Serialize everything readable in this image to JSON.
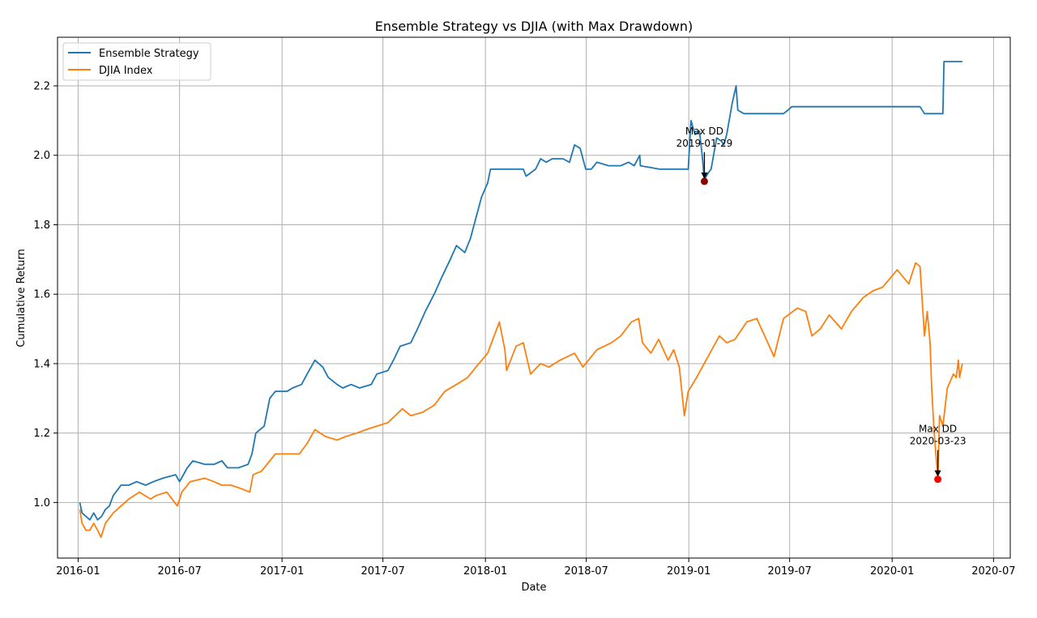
{
  "chart_data": {
    "type": "line",
    "title": "Ensemble Strategy vs DJIA (with Max Drawdown)",
    "xlabel": "Date",
    "ylabel": "Cumulative Return",
    "xlim": [
      "2015-11-25",
      "2020-07-31"
    ],
    "ylim": [
      0.84,
      2.34
    ],
    "x_ticks": [
      "2016-01",
      "2016-07",
      "2017-01",
      "2017-07",
      "2018-01",
      "2018-07",
      "2019-01",
      "2019-07",
      "2020-01",
      "2020-07"
    ],
    "y_ticks": [
      1.0,
      1.2,
      1.4,
      1.6,
      1.8,
      2.0,
      2.2
    ],
    "grid": true,
    "legend_position": "top-left",
    "series": [
      {
        "name": "Ensemble Strategy",
        "color": "#1f77b4",
        "points": [
          [
            "2016-01-04",
            1.0
          ],
          [
            "2016-01-08",
            0.97
          ],
          [
            "2016-01-15",
            0.96
          ],
          [
            "2016-01-22",
            0.95
          ],
          [
            "2016-01-29",
            0.97
          ],
          [
            "2016-02-05",
            0.95
          ],
          [
            "2016-02-12",
            0.96
          ],
          [
            "2016-02-19",
            0.98
          ],
          [
            "2016-02-26",
            0.99
          ],
          [
            "2016-03-04",
            1.02
          ],
          [
            "2016-03-18",
            1.05
          ],
          [
            "2016-04-01",
            1.05
          ],
          [
            "2016-04-15",
            1.06
          ],
          [
            "2016-05-01",
            1.05
          ],
          [
            "2016-05-15",
            1.06
          ],
          [
            "2016-06-01",
            1.07
          ],
          [
            "2016-06-24",
            1.08
          ],
          [
            "2016-07-01",
            1.06
          ],
          [
            "2016-07-15",
            1.1
          ],
          [
            "2016-07-25",
            1.12
          ],
          [
            "2016-08-15",
            1.11
          ],
          [
            "2016-09-01",
            1.11
          ],
          [
            "2016-09-15",
            1.12
          ],
          [
            "2016-09-25",
            1.1
          ],
          [
            "2016-10-15",
            1.1
          ],
          [
            "2016-11-01",
            1.11
          ],
          [
            "2016-11-08",
            1.14
          ],
          [
            "2016-11-15",
            1.2
          ],
          [
            "2016-11-30",
            1.22
          ],
          [
            "2016-12-10",
            1.3
          ],
          [
            "2016-12-20",
            1.32
          ],
          [
            "2017-01-10",
            1.32
          ],
          [
            "2017-01-20",
            1.33
          ],
          [
            "2017-02-05",
            1.34
          ],
          [
            "2017-02-15",
            1.37
          ],
          [
            "2017-03-01",
            1.41
          ],
          [
            "2017-03-15",
            1.39
          ],
          [
            "2017-03-25",
            1.36
          ],
          [
            "2017-04-10",
            1.34
          ],
          [
            "2017-04-20",
            1.33
          ],
          [
            "2017-05-05",
            1.34
          ],
          [
            "2017-05-20",
            1.33
          ],
          [
            "2017-06-10",
            1.34
          ],
          [
            "2017-06-20",
            1.37
          ],
          [
            "2017-07-10",
            1.38
          ],
          [
            "2017-07-20",
            1.41
          ],
          [
            "2017-08-01",
            1.45
          ],
          [
            "2017-08-20",
            1.46
          ],
          [
            "2017-09-01",
            1.5
          ],
          [
            "2017-09-15",
            1.55
          ],
          [
            "2017-10-01",
            1.6
          ],
          [
            "2017-10-15",
            1.65
          ],
          [
            "2017-10-30",
            1.7
          ],
          [
            "2017-11-10",
            1.74
          ],
          [
            "2017-11-25",
            1.72
          ],
          [
            "2017-12-05",
            1.76
          ],
          [
            "2017-12-15",
            1.82
          ],
          [
            "2017-12-25",
            1.88
          ],
          [
            "2018-01-05",
            1.92
          ],
          [
            "2018-01-10",
            1.96
          ],
          [
            "2018-02-01",
            1.96
          ],
          [
            "2018-03-10",
            1.96
          ],
          [
            "2018-03-15",
            1.94
          ],
          [
            "2018-04-01",
            1.96
          ],
          [
            "2018-04-10",
            1.99
          ],
          [
            "2018-04-20",
            1.98
          ],
          [
            "2018-05-01",
            1.99
          ],
          [
            "2018-05-20",
            1.99
          ],
          [
            "2018-06-01",
            1.98
          ],
          [
            "2018-06-10",
            2.03
          ],
          [
            "2018-06-20",
            2.02
          ],
          [
            "2018-06-30",
            1.96
          ],
          [
            "2018-07-10",
            1.96
          ],
          [
            "2018-07-20",
            1.98
          ],
          [
            "2018-08-10",
            1.97
          ],
          [
            "2018-09-01",
            1.97
          ],
          [
            "2018-09-15",
            1.98
          ],
          [
            "2018-09-25",
            1.97
          ],
          [
            "2018-10-05",
            2.0
          ],
          [
            "2018-10-06",
            1.97
          ],
          [
            "2018-11-10",
            1.96
          ],
          [
            "2018-12-31",
            1.96
          ],
          [
            "2019-01-05",
            2.1
          ],
          [
            "2019-01-12",
            2.06
          ],
          [
            "2019-01-20",
            2.07
          ],
          [
            "2019-01-25",
            2.0
          ],
          [
            "2019-01-29",
            1.93
          ],
          [
            "2019-02-05",
            1.95
          ],
          [
            "2019-02-10",
            1.96
          ],
          [
            "2019-02-20",
            2.05
          ],
          [
            "2019-03-01",
            2.04
          ],
          [
            "2019-03-05",
            2.03
          ],
          [
            "2019-03-10",
            2.06
          ],
          [
            "2019-03-20",
            2.15
          ],
          [
            "2019-03-27",
            2.2
          ],
          [
            "2019-03-30",
            2.13
          ],
          [
            "2019-04-10",
            2.12
          ],
          [
            "2019-05-01",
            2.12
          ],
          [
            "2019-06-01",
            2.12
          ],
          [
            "2019-06-20",
            2.12
          ],
          [
            "2019-06-28",
            2.13
          ],
          [
            "2019-07-05",
            2.14
          ],
          [
            "2019-07-20",
            2.14
          ],
          [
            "2019-08-01",
            2.14
          ],
          [
            "2019-09-01",
            2.14
          ],
          [
            "2019-10-01",
            2.14
          ],
          [
            "2019-11-01",
            2.14
          ],
          [
            "2019-12-01",
            2.14
          ],
          [
            "2020-01-01",
            2.14
          ],
          [
            "2020-02-01",
            2.14
          ],
          [
            "2020-02-20",
            2.14
          ],
          [
            "2020-02-28",
            2.12
          ],
          [
            "2020-03-15",
            2.12
          ],
          [
            "2020-04-01",
            2.12
          ],
          [
            "2020-04-03",
            2.27
          ],
          [
            "2020-05-06",
            2.27
          ]
        ]
      },
      {
        "name": "DJIA Index",
        "color": "#ff7f0e",
        "points": [
          [
            "2016-01-04",
            0.98
          ],
          [
            "2016-01-08",
            0.94
          ],
          [
            "2016-01-15",
            0.92
          ],
          [
            "2016-01-22",
            0.92
          ],
          [
            "2016-01-29",
            0.94
          ],
          [
            "2016-02-05",
            0.92
          ],
          [
            "2016-02-11",
            0.9
          ],
          [
            "2016-02-19",
            0.94
          ],
          [
            "2016-03-04",
            0.97
          ],
          [
            "2016-03-18",
            0.99
          ],
          [
            "2016-04-01",
            1.01
          ],
          [
            "2016-04-20",
            1.03
          ],
          [
            "2016-05-10",
            1.01
          ],
          [
            "2016-05-20",
            1.02
          ],
          [
            "2016-06-08",
            1.03
          ],
          [
            "2016-06-27",
            0.99
          ],
          [
            "2016-07-05",
            1.03
          ],
          [
            "2016-07-20",
            1.06
          ],
          [
            "2016-08-15",
            1.07
          ],
          [
            "2016-09-01",
            1.06
          ],
          [
            "2016-09-15",
            1.05
          ],
          [
            "2016-10-01",
            1.05
          ],
          [
            "2016-10-20",
            1.04
          ],
          [
            "2016-11-04",
            1.03
          ],
          [
            "2016-11-10",
            1.08
          ],
          [
            "2016-11-25",
            1.09
          ],
          [
            "2016-12-10",
            1.12
          ],
          [
            "2016-12-20",
            1.14
          ],
          [
            "2017-01-15",
            1.14
          ],
          [
            "2017-02-01",
            1.14
          ],
          [
            "2017-02-15",
            1.17
          ],
          [
            "2017-03-01",
            1.21
          ],
          [
            "2017-03-20",
            1.19
          ],
          [
            "2017-04-10",
            1.18
          ],
          [
            "2017-04-25",
            1.19
          ],
          [
            "2017-05-15",
            1.2
          ],
          [
            "2017-06-01",
            1.21
          ],
          [
            "2017-06-20",
            1.22
          ],
          [
            "2017-07-10",
            1.23
          ],
          [
            "2017-08-05",
            1.27
          ],
          [
            "2017-08-20",
            1.25
          ],
          [
            "2017-09-10",
            1.26
          ],
          [
            "2017-10-01",
            1.28
          ],
          [
            "2017-10-20",
            1.32
          ],
          [
            "2017-11-10",
            1.34
          ],
          [
            "2017-11-30",
            1.36
          ],
          [
            "2017-12-15",
            1.39
          ],
          [
            "2018-01-05",
            1.43
          ],
          [
            "2018-01-26",
            1.52
          ],
          [
            "2018-02-05",
            1.44
          ],
          [
            "2018-02-08",
            1.38
          ],
          [
            "2018-02-25",
            1.45
          ],
          [
            "2018-03-10",
            1.46
          ],
          [
            "2018-03-23",
            1.37
          ],
          [
            "2018-04-10",
            1.4
          ],
          [
            "2018-04-25",
            1.39
          ],
          [
            "2018-05-15",
            1.41
          ],
          [
            "2018-06-10",
            1.43
          ],
          [
            "2018-06-25",
            1.39
          ],
          [
            "2018-07-20",
            1.44
          ],
          [
            "2018-08-15",
            1.46
          ],
          [
            "2018-09-01",
            1.48
          ],
          [
            "2018-09-20",
            1.52
          ],
          [
            "2018-10-03",
            1.53
          ],
          [
            "2018-10-10",
            1.46
          ],
          [
            "2018-10-25",
            1.43
          ],
          [
            "2018-11-08",
            1.47
          ],
          [
            "2018-11-25",
            1.41
          ],
          [
            "2018-12-05",
            1.44
          ],
          [
            "2018-12-15",
            1.39
          ],
          [
            "2018-12-24",
            1.25
          ],
          [
            "2018-12-31",
            1.32
          ],
          [
            "2019-01-15",
            1.36
          ],
          [
            "2019-02-01",
            1.41
          ],
          [
            "2019-02-25",
            1.48
          ],
          [
            "2019-03-10",
            1.46
          ],
          [
            "2019-03-25",
            1.47
          ],
          [
            "2019-04-15",
            1.52
          ],
          [
            "2019-05-03",
            1.53
          ],
          [
            "2019-05-20",
            1.47
          ],
          [
            "2019-06-03",
            1.42
          ],
          [
            "2019-06-20",
            1.53
          ],
          [
            "2019-07-15",
            1.56
          ],
          [
            "2019-07-30",
            1.55
          ],
          [
            "2019-08-10",
            1.48
          ],
          [
            "2019-08-25",
            1.5
          ],
          [
            "2019-09-10",
            1.54
          ],
          [
            "2019-10-02",
            1.5
          ],
          [
            "2019-10-20",
            1.55
          ],
          [
            "2019-11-10",
            1.59
          ],
          [
            "2019-11-28",
            1.61
          ],
          [
            "2019-12-15",
            1.62
          ],
          [
            "2020-01-10",
            1.67
          ],
          [
            "2020-01-31",
            1.63
          ],
          [
            "2020-02-12",
            1.69
          ],
          [
            "2020-02-20",
            1.68
          ],
          [
            "2020-02-28",
            1.48
          ],
          [
            "2020-03-04",
            1.55
          ],
          [
            "2020-03-09",
            1.46
          ],
          [
            "2020-03-12",
            1.33
          ],
          [
            "2020-03-16",
            1.21
          ],
          [
            "2020-03-23",
            1.07
          ],
          [
            "2020-03-26",
            1.25
          ],
          [
            "2020-04-01",
            1.22
          ],
          [
            "2020-04-09",
            1.33
          ],
          [
            "2020-04-20",
            1.37
          ],
          [
            "2020-04-25",
            1.36
          ],
          [
            "2020-04-29",
            1.41
          ],
          [
            "2020-05-01",
            1.36
          ],
          [
            "2020-05-06",
            1.4
          ]
        ]
      }
    ],
    "annotations": [
      {
        "label_line1": "Max DD",
        "label_line2": "2019-01-29",
        "x": "2019-01-29",
        "y": 1.925,
        "color": "#8b0000"
      },
      {
        "label_line1": "Max DD",
        "label_line2": "2020-03-23",
        "x": "2020-03-23",
        "y": 1.067,
        "color": "#ff0000"
      }
    ]
  }
}
